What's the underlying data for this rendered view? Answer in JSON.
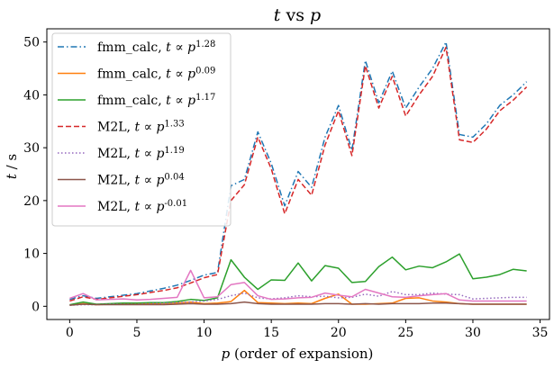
{
  "chart_data": {
    "type": "line",
    "title": "t vs p",
    "xlabel": "p (order of expansion)",
    "ylabel": "t / s",
    "xlim": [
      -1.7,
      35.7
    ],
    "ylim": [
      -2.5,
      52.5
    ],
    "xticks": [
      0,
      5,
      10,
      15,
      20,
      25,
      30,
      35
    ],
    "yticks": [
      0,
      10,
      20,
      30,
      40,
      50
    ],
    "grid": false,
    "legend_position": "upper-left",
    "x": [
      0,
      1,
      2,
      3,
      4,
      5,
      6,
      7,
      8,
      9,
      10,
      11,
      12,
      13,
      14,
      15,
      16,
      17,
      18,
      19,
      20,
      21,
      22,
      23,
      24,
      25,
      26,
      27,
      28,
      29,
      30,
      31,
      32,
      33,
      34
    ],
    "series": [
      {
        "name": "fmm_calc,  t ∝ p^1.28",
        "color": "#1f77b4",
        "style": "dashdot",
        "values": [
          1.3,
          2.0,
          1.5,
          1.8,
          2.1,
          2.4,
          2.9,
          3.4,
          4.0,
          4.9,
          5.9,
          6.4,
          22.8,
          24.0,
          33.0,
          27.0,
          19.0,
          25.5,
          22.5,
          32.0,
          38.0,
          29.5,
          46.5,
          38.5,
          44.5,
          37.5,
          41.5,
          45.0,
          50.0,
          32.5,
          32.0,
          34.5,
          38.0,
          40.0,
          42.5
        ]
      },
      {
        "name": "fmm_calc,  t ∝ p^0.09",
        "color": "#ff7f0e",
        "style": "solid",
        "values": [
          0.2,
          0.5,
          0.3,
          0.4,
          0.5,
          0.4,
          0.5,
          0.4,
          0.6,
          0.8,
          0.5,
          0.6,
          0.9,
          3.0,
          0.7,
          0.6,
          0.5,
          0.6,
          0.5,
          1.5,
          2.3,
          0.4,
          0.4,
          0.5,
          0.6,
          1.5,
          1.6,
          1.0,
          0.8,
          0.5,
          0.4,
          0.4,
          0.4,
          0.4,
          0.4
        ]
      },
      {
        "name": "fmm_calc,  t ∝ p^1.17",
        "color": "#2ca02c",
        "style": "solid",
        "values": [
          0.3,
          0.8,
          0.4,
          0.5,
          0.6,
          0.6,
          0.7,
          0.7,
          0.9,
          1.3,
          1.1,
          1.6,
          8.8,
          5.5,
          3.2,
          5.0,
          4.9,
          8.2,
          4.8,
          7.7,
          7.2,
          4.5,
          4.7,
          7.5,
          9.3,
          6.9,
          7.6,
          7.3,
          8.4,
          9.9,
          5.2,
          5.5,
          6.0,
          7.0,
          6.7
        ]
      },
      {
        "name": "M2L,  t ∝ p^1.33",
        "color": "#d62728",
        "style": "dashed",
        "values": [
          1.0,
          1.8,
          1.3,
          1.6,
          1.9,
          2.2,
          2.6,
          3.0,
          3.5,
          4.4,
          5.4,
          6.0,
          20.0,
          23.0,
          32.0,
          26.0,
          17.5,
          24.0,
          21.0,
          30.5,
          37.0,
          28.5,
          45.5,
          37.5,
          43.5,
          36.0,
          40.0,
          43.5,
          49.0,
          31.5,
          31.0,
          33.5,
          37.0,
          39.0,
          41.5
        ]
      },
      {
        "name": "M2L,  t ∝ p^1.19",
        "color": "#9467bd",
        "style": "dotted",
        "values": [
          0.2,
          0.3,
          0.3,
          0.4,
          0.4,
          0.4,
          0.5,
          0.6,
          0.7,
          0.8,
          1.0,
          1.3,
          2.0,
          2.5,
          1.6,
          1.4,
          1.6,
          2.0,
          1.8,
          1.9,
          1.6,
          1.7,
          2.3,
          1.9,
          2.8,
          2.2,
          2.2,
          2.5,
          2.3,
          2.2,
          1.4,
          1.5,
          1.6,
          1.7,
          1.7
        ]
      },
      {
        "name": "M2L,  t ∝ p^0.04",
        "color": "#8c564b",
        "style": "solid",
        "values": [
          0.2,
          0.4,
          0.3,
          0.3,
          0.3,
          0.3,
          0.3,
          0.3,
          0.4,
          0.5,
          0.4,
          0.4,
          0.5,
          0.8,
          0.5,
          0.4,
          0.4,
          0.4,
          0.4,
          0.5,
          0.5,
          0.4,
          0.5,
          0.4,
          0.5,
          0.5,
          0.5,
          0.6,
          0.6,
          0.5,
          0.4,
          0.4,
          0.4,
          0.4,
          0.4
        ]
      },
      {
        "name": "M2L,  t ∝ p^-0.01",
        "color": "#e377c2",
        "style": "solid",
        "values": [
          1.5,
          2.4,
          1.2,
          1.3,
          1.4,
          1.2,
          1.3,
          1.5,
          1.7,
          6.8,
          1.6,
          1.8,
          4.1,
          4.5,
          2.0,
          1.3,
          1.4,
          1.6,
          1.7,
          2.5,
          2.1,
          1.8,
          3.2,
          2.5,
          1.8,
          1.7,
          2.0,
          2.2,
          2.4,
          1.2,
          1.0,
          1.0,
          1.0,
          1.0,
          1.0
        ]
      }
    ]
  }
}
